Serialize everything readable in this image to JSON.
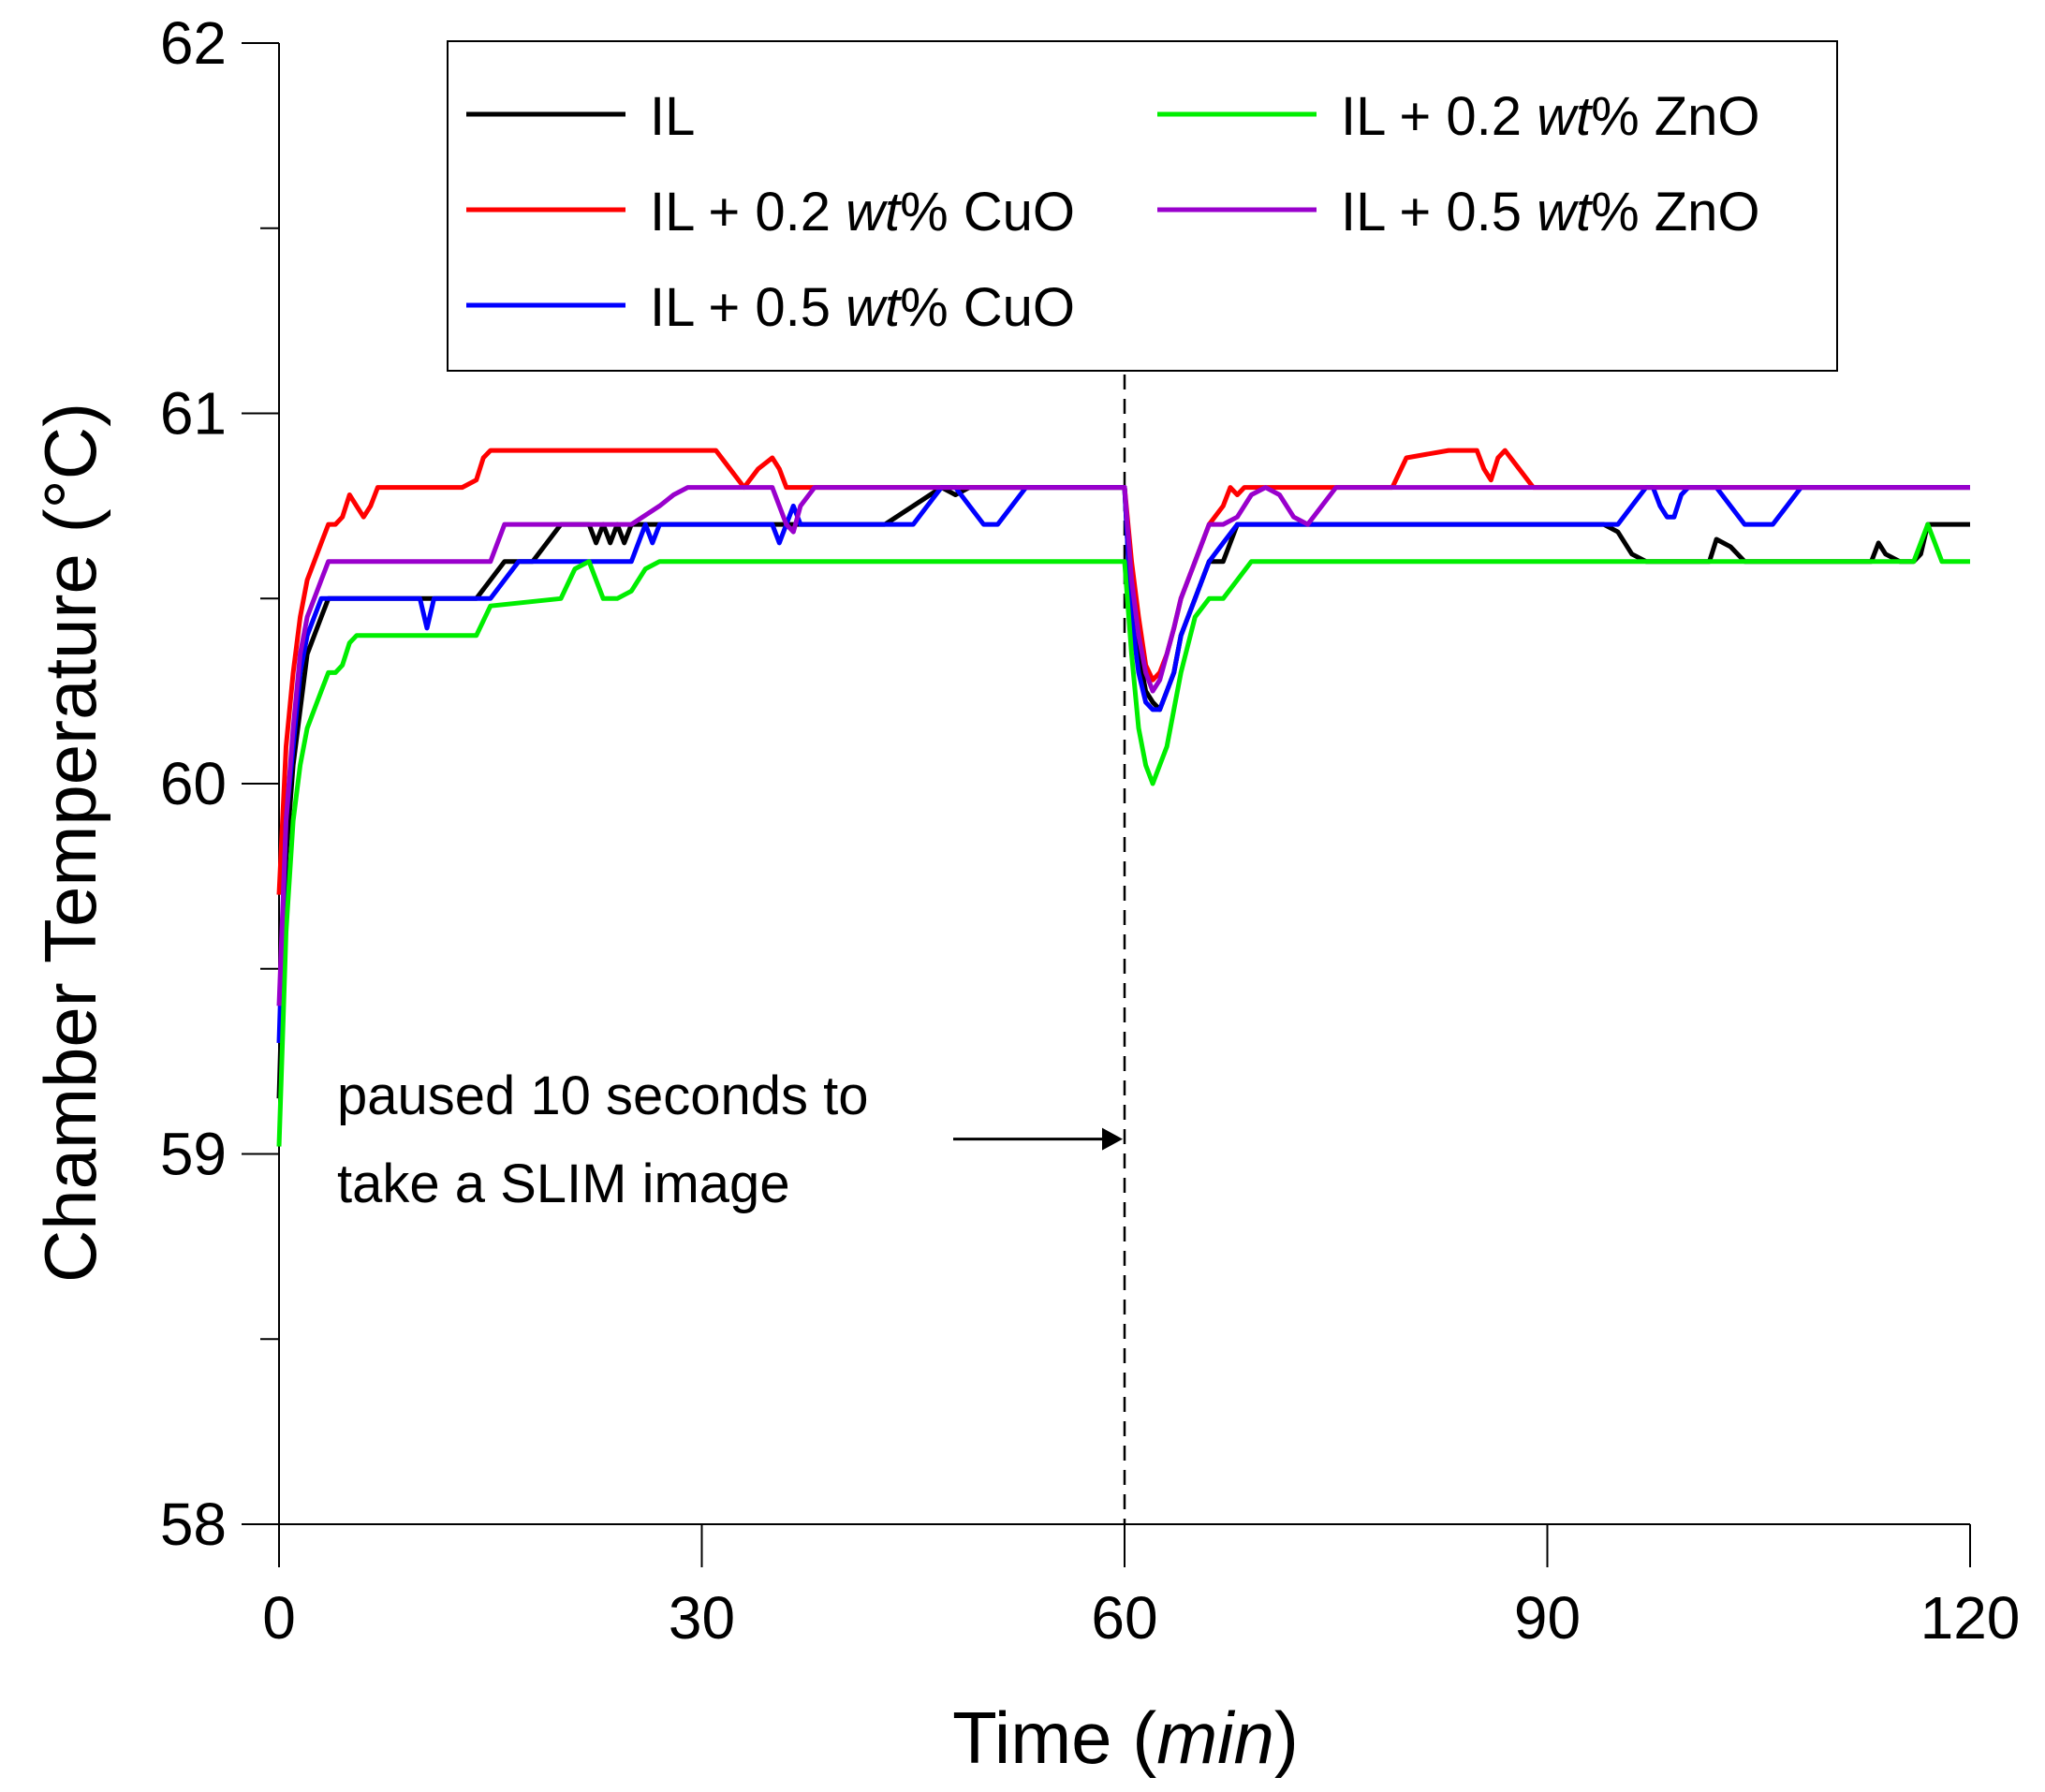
{
  "chart_data": {
    "type": "line",
    "title": "",
    "xlabel": "Time (min)",
    "xlabel_parts": {
      "prefix": "Time (",
      "italic": "min",
      "suffix": ")"
    },
    "ylabel": "Chamber Temperature (°C)",
    "xlim": [
      0,
      120
    ],
    "ylim": [
      58,
      62
    ],
    "xticks": [
      0,
      30,
      60,
      90,
      120
    ],
    "yticks": [
      58,
      59,
      60,
      61,
      62
    ],
    "yminor_ticks": [
      58.5,
      59.5,
      60.5,
      61.5
    ],
    "grid": false,
    "legend_position": "top",
    "pause_marker_x": 60,
    "annotation": {
      "line1": "paused 10 seconds to",
      "line2": "take a SLIM image",
      "arrow_y": 59.04
    },
    "series": [
      {
        "name": "IL",
        "legend": {
          "prefix": "IL",
          "italic": "",
          "suffix": ""
        },
        "color": "#000000",
        "x": [
          0,
          0.5,
          1,
          1.5,
          2,
          2.5,
          3,
          3.5,
          4,
          5,
          8,
          14,
          15,
          16,
          18,
          19,
          20,
          21,
          22,
          22.5,
          23,
          23.5,
          24,
          24.5,
          25,
          26,
          27,
          30,
          40,
          43,
          45,
          47,
          48,
          49,
          50,
          60,
          60.5,
          61,
          61.5,
          62,
          62.5,
          63,
          63.5,
          64,
          65,
          66,
          67,
          68,
          70,
          80,
          94,
          95,
          96,
          97,
          100,
          101.5,
          102,
          103,
          104,
          108,
          110,
          113,
          113.5,
          114,
          115,
          116,
          116.5,
          117,
          117.5,
          120
        ],
        "values": [
          59.15,
          59.8,
          60.05,
          60.2,
          60.35,
          60.4,
          60.45,
          60.5,
          60.5,
          60.5,
          60.5,
          60.5,
          60.55,
          60.6,
          60.6,
          60.65,
          60.7,
          60.7,
          60.7,
          60.65,
          60.7,
          60.65,
          60.7,
          60.65,
          60.7,
          60.7,
          60.7,
          60.7,
          60.7,
          60.7,
          60.75,
          60.8,
          60.78,
          60.8,
          60.8,
          60.8,
          60.45,
          60.35,
          60.25,
          60.22,
          60.2,
          60.25,
          60.3,
          60.4,
          60.5,
          60.6,
          60.6,
          60.7,
          60.7,
          60.7,
          60.7,
          60.68,
          60.62,
          60.6,
          60.6,
          60.6,
          60.66,
          60.64,
          60.6,
          60.6,
          60.6,
          60.6,
          60.65,
          60.62,
          60.6,
          60.6,
          60.62,
          60.7,
          60.7,
          60.7
        ]
      },
      {
        "name": "IL + 0.2 wt% CuO",
        "legend": {
          "prefix": "IL + 0.2 ",
          "italic": "wt",
          "suffix": "% CuO"
        },
        "color": "#ff0000",
        "x": [
          0,
          0.5,
          1,
          1.5,
          2,
          2.5,
          3,
          3.5,
          4,
          4.5,
          5,
          5.5,
          6,
          6.5,
          7,
          8,
          10,
          13,
          14,
          14.5,
          15,
          20,
          25,
          30,
          31,
          32,
          33,
          34,
          35,
          35.5,
          36,
          37,
          40,
          45,
          50,
          60,
          60.5,
          61,
          61.5,
          62,
          62.5,
          63,
          63.5,
          64,
          65,
          66,
          67,
          67.5,
          68,
          68.5,
          69,
          70,
          75,
          79,
          80,
          83,
          85,
          85.5,
          86,
          86.5,
          87,
          88,
          89,
          90,
          100,
          110,
          120
        ],
        "values": [
          59.7,
          60.1,
          60.3,
          60.45,
          60.55,
          60.6,
          60.65,
          60.7,
          60.7,
          60.72,
          60.78,
          60.75,
          60.72,
          60.75,
          60.8,
          60.8,
          60.8,
          60.8,
          60.82,
          60.88,
          60.9,
          60.9,
          60.9,
          60.9,
          60.9,
          60.85,
          60.8,
          60.85,
          60.88,
          60.85,
          60.8,
          60.8,
          60.8,
          60.8,
          60.8,
          60.8,
          60.6,
          60.45,
          60.32,
          60.28,
          60.3,
          60.35,
          60.42,
          60.5,
          60.6,
          60.7,
          60.75,
          60.8,
          60.78,
          60.8,
          60.8,
          60.8,
          60.8,
          60.8,
          60.88,
          60.9,
          60.9,
          60.85,
          60.82,
          60.88,
          60.9,
          60.85,
          60.8,
          60.8,
          60.8,
          60.8,
          60.8
        ]
      },
      {
        "name": "IL + 0.5 wt% CuO",
        "legend": {
          "prefix": "IL + 0.5 ",
          "italic": "wt",
          "suffix": "% CuO"
        },
        "color": "#0000ff",
        "x": [
          0,
          0.5,
          1,
          1.5,
          2,
          2.5,
          3,
          3.5,
          4,
          5,
          10,
          10.5,
          11,
          15,
          16,
          17,
          20,
          25,
          25.5,
          26,
          26.5,
          27,
          28,
          30,
          35,
          35.5,
          36,
          36.5,
          37,
          40,
          45,
          46,
          47,
          48,
          49,
          50,
          51,
          52,
          53,
          60,
          60.5,
          61,
          61.5,
          62,
          62.5,
          63,
          63.5,
          64,
          65,
          66,
          67,
          68,
          70,
          80,
          95,
          96,
          97,
          97.5,
          98,
          98.5,
          99,
          99.5,
          100,
          102,
          103,
          104,
          106,
          107,
          108,
          110,
          120
        ],
        "values": [
          59.3,
          59.9,
          60.1,
          60.3,
          60.4,
          60.45,
          60.5,
          60.5,
          60.5,
          60.5,
          60.5,
          60.42,
          60.5,
          60.5,
          60.55,
          60.6,
          60.6,
          60.6,
          60.65,
          60.7,
          60.65,
          60.7,
          60.7,
          60.7,
          60.7,
          60.65,
          60.7,
          60.75,
          60.7,
          60.7,
          60.7,
          60.75,
          60.8,
          60.8,
          60.75,
          60.7,
          60.7,
          60.75,
          60.8,
          60.8,
          60.45,
          60.3,
          60.22,
          60.2,
          60.2,
          60.25,
          60.3,
          60.4,
          60.5,
          60.6,
          60.65,
          60.7,
          60.7,
          60.7,
          60.7,
          60.75,
          60.8,
          60.8,
          60.75,
          60.72,
          60.72,
          60.78,
          60.8,
          60.8,
          60.75,
          60.7,
          60.7,
          60.75,
          60.8,
          60.8,
          60.8
        ]
      },
      {
        "name": "IL + 0.2 wt% ZnO",
        "legend": {
          "prefix": "IL + 0.2 ",
          "italic": "wt",
          "suffix": "% ZnO"
        },
        "color": "#00ee00",
        "x": [
          0,
          0.5,
          1,
          1.5,
          2,
          2.5,
          3,
          3.5,
          4,
          4.5,
          5,
          5.5,
          6,
          10,
          14,
          15,
          20,
          21,
          22,
          22.5,
          23,
          24,
          25,
          26,
          27,
          30,
          40,
          50,
          60,
          60.5,
          61,
          61.5,
          62,
          62.5,
          63,
          63.5,
          64,
          65,
          66,
          67,
          68,
          69,
          70,
          80,
          90,
          100,
          110,
          116,
          116.5,
          117,
          117.5,
          118,
          120
        ],
        "values": [
          59.02,
          59.6,
          59.9,
          60.05,
          60.15,
          60.2,
          60.25,
          60.3,
          60.3,
          60.32,
          60.38,
          60.4,
          60.4,
          60.4,
          60.4,
          60.48,
          60.5,
          60.58,
          60.6,
          60.55,
          60.5,
          60.5,
          60.52,
          60.58,
          60.6,
          60.6,
          60.6,
          60.6,
          60.6,
          60.35,
          60.15,
          60.05,
          60.0,
          60.05,
          60.1,
          60.2,
          60.3,
          60.45,
          60.5,
          60.5,
          60.55,
          60.6,
          60.6,
          60.6,
          60.6,
          60.6,
          60.6,
          60.6,
          60.65,
          60.7,
          60.65,
          60.6,
          60.6
        ]
      },
      {
        "name": "IL + 0.5 wt% ZnO",
        "legend": {
          "prefix": "IL + 0.5 ",
          "italic": "wt",
          "suffix": "% ZnO"
        },
        "color": "#9900cc",
        "x": [
          0,
          0.5,
          1,
          1.5,
          2,
          2.5,
          3,
          3.5,
          4,
          5,
          10,
          15,
          16,
          20,
          25,
          27,
          28,
          29,
          30,
          35,
          36,
          36.5,
          37,
          38,
          40,
          50,
          60,
          60.5,
          61,
          61.5,
          62,
          62.5,
          63,
          63.5,
          64,
          65,
          66,
          67,
          68,
          69,
          70,
          71,
          72,
          73,
          74,
          75,
          80,
          90,
          100,
          110,
          120
        ],
        "values": [
          59.4,
          59.9,
          60.15,
          60.35,
          60.45,
          60.5,
          60.55,
          60.6,
          60.6,
          60.6,
          60.6,
          60.6,
          60.7,
          60.7,
          60.7,
          60.75,
          60.78,
          60.8,
          60.8,
          60.8,
          60.7,
          60.68,
          60.75,
          60.8,
          60.8,
          60.8,
          60.8,
          60.55,
          60.4,
          60.3,
          60.25,
          60.28,
          60.35,
          60.42,
          60.5,
          60.6,
          60.7,
          60.7,
          60.72,
          60.78,
          60.8,
          60.78,
          60.72,
          60.7,
          60.75,
          60.8,
          60.8,
          60.8,
          60.8,
          60.8,
          60.8
        ]
      }
    ]
  }
}
